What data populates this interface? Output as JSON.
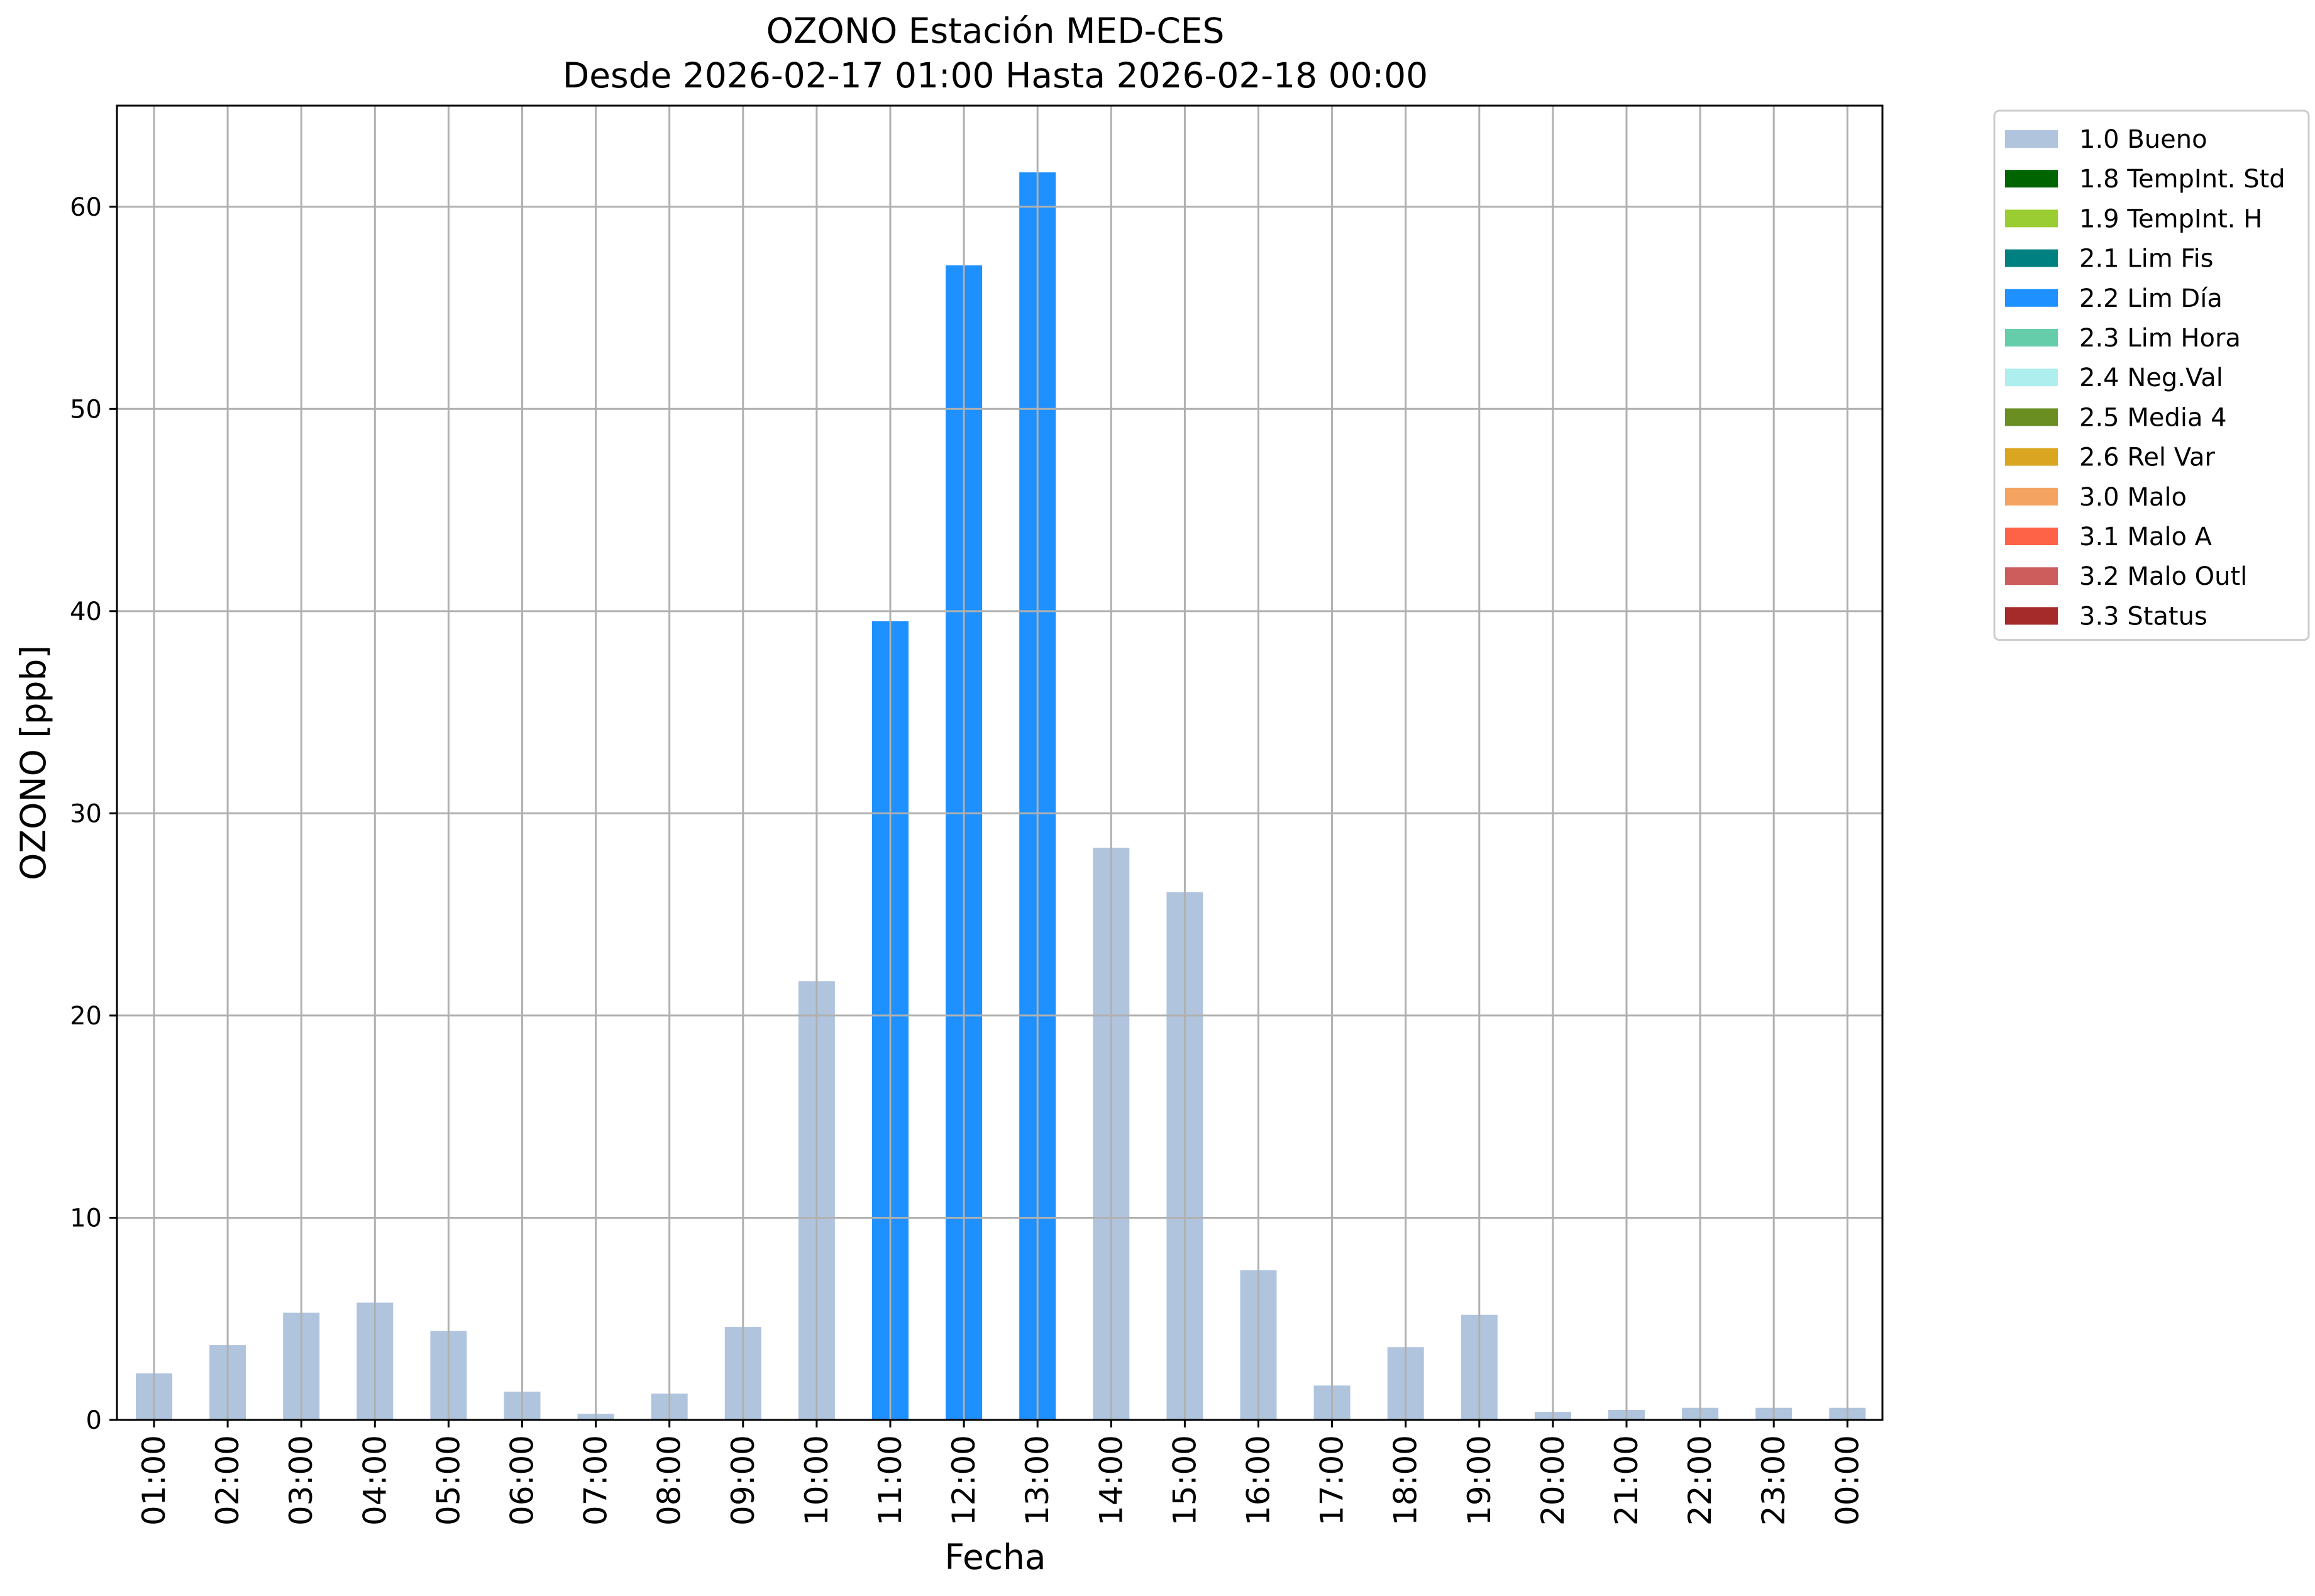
{
  "chart_data": {
    "type": "bar",
    "title": "OZONO Estación MED-CES",
    "subtitle": "Desde 2026-02-17 01:00 Hasta 2026-02-18 00:00",
    "xlabel": "Fecha",
    "ylabel": "OZONO [ppb]",
    "ylim": [
      0,
      65
    ],
    "yticks": [
      0,
      10,
      20,
      30,
      40,
      50,
      60
    ],
    "grid": true,
    "legend_position": "outside-top-right",
    "categories": [
      "01:00",
      "02:00",
      "03:00",
      "04:00",
      "05:00",
      "06:00",
      "07:00",
      "08:00",
      "09:00",
      "10:00",
      "11:00",
      "12:00",
      "13:00",
      "14:00",
      "15:00",
      "16:00",
      "17:00",
      "18:00",
      "19:00",
      "20:00",
      "21:00",
      "22:00",
      "23:00",
      "00:00"
    ],
    "values": [
      2.3,
      3.7,
      5.3,
      5.8,
      4.4,
      1.4,
      0.3,
      1.3,
      4.6,
      21.7,
      39.5,
      57.1,
      61.7,
      28.3,
      26.1,
      7.4,
      1.7,
      3.6,
      5.2,
      0.4,
      0.5,
      0.6,
      0.6,
      0.6
    ],
    "flags": [
      "1.0 Bueno",
      "1.0 Bueno",
      "1.0 Bueno",
      "1.0 Bueno",
      "1.0 Bueno",
      "1.0 Bueno",
      "1.0 Bueno",
      "1.0 Bueno",
      "1.0 Bueno",
      "1.0 Bueno",
      "2.2 Lim Día",
      "2.2 Lim Día",
      "2.2 Lim Día",
      "1.0 Bueno",
      "1.0 Bueno",
      "1.0 Bueno",
      "1.0 Bueno",
      "1.0 Bueno",
      "1.0 Bueno",
      "1.0 Bueno",
      "1.0 Bueno",
      "1.0 Bueno",
      "1.0 Bueno",
      "1.0 Bueno"
    ],
    "legend": [
      {
        "label": "1.0 Bueno",
        "color": "#b0c4de"
      },
      {
        "label": "1.8 TempInt. Std",
        "color": "#006400"
      },
      {
        "label": "1.9 TempInt. H",
        "color": "#9acd32"
      },
      {
        "label": "2.1 Lim Fis",
        "color": "#008080"
      },
      {
        "label": "2.2 Lim Día",
        "color": "#1e90ff"
      },
      {
        "label": "2.3 Lim Hora",
        "color": "#66cdaa"
      },
      {
        "label": "2.4 Neg.Val",
        "color": "#afeeee"
      },
      {
        "label": "2.5 Media 4",
        "color": "#6b8e23"
      },
      {
        "label": "2.6 Rel Var",
        "color": "#daa520"
      },
      {
        "label": "3.0 Malo",
        "color": "#f4a460"
      },
      {
        "label": "3.1 Malo A",
        "color": "#ff6347"
      },
      {
        "label": "3.2 Malo Outl",
        "color": "#cd5c5c"
      },
      {
        "label": "3.3 Status",
        "color": "#a52a2a"
      }
    ]
  }
}
